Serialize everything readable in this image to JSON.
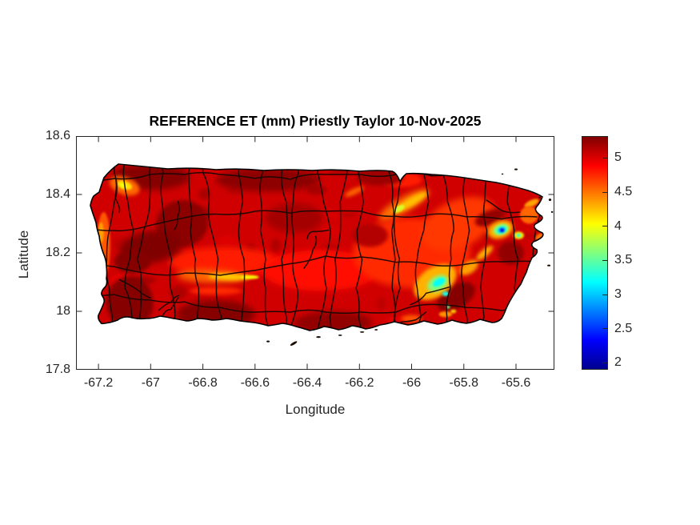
{
  "chart_data": {
    "type": "heatmap",
    "title": "REFERENCE ET (mm) Priestly Taylor 10-Nov-2025",
    "xlabel": "Longitude",
    "ylabel": "Latitude",
    "x_ticks": [
      -67.2,
      -67,
      -66.8,
      -66.6,
      -66.4,
      -66.2,
      -66,
      -65.8,
      -65.6
    ],
    "x_tick_labels": [
      "-67.2",
      "-67",
      "-66.8",
      "-66.6",
      "-66.4",
      "-66.2",
      "-66",
      "-65.8",
      "-65.6"
    ],
    "y_ticks": [
      18.6,
      18.4,
      18.2,
      18,
      17.8
    ],
    "y_tick_labels": [
      "18.6",
      "18.4",
      "18.2",
      "18",
      "17.8"
    ],
    "xlim": [
      -67.286,
      -65.453
    ],
    "ylim": [
      17.8,
      18.6
    ],
    "grid": false,
    "region": "Puerto Rico with municipal boundary outlines over a reference-ET raster",
    "axis_color": "#262626",
    "boundary_color": "#140703",
    "coast_color": "#000000",
    "colorbar": {
      "position": "right",
      "ticks": [
        5,
        4.5,
        4,
        3.5,
        3,
        2.5,
        2
      ],
      "tick_labels": [
        "5",
        "4.5",
        "4",
        "3.5",
        "3",
        "2.5",
        "2"
      ],
      "vmin": 1.9,
      "vmax": 5.32,
      "colormap": "jet",
      "stops": [
        {
          "at": 0.0,
          "color": "#00008f"
        },
        {
          "at": 0.125,
          "color": "#0000ff"
        },
        {
          "at": 0.375,
          "color": "#00ffff"
        },
        {
          "at": 0.625,
          "color": "#ffff00"
        },
        {
          "at": 0.875,
          "color": "#ff0000"
        },
        {
          "at": 1.0,
          "color": "#800000"
        }
      ]
    },
    "base_value_mm": 5.05,
    "features": [
      {
        "name": "central-band-west-wash",
        "lon": -66.72,
        "lat": 18.17,
        "w": 0.42,
        "h": 0.1,
        "rot": 0,
        "v": 4.8
      },
      {
        "name": "central-band-mid-wash",
        "lon": -66.35,
        "lat": 18.14,
        "w": 0.45,
        "h": 0.14,
        "rot": 0,
        "v": 4.85
      },
      {
        "name": "east-half-wash",
        "lon": -66.0,
        "lat": 18.2,
        "w": 0.45,
        "h": 0.24,
        "rot": 0,
        "v": 4.75
      },
      {
        "name": "northeast-wash",
        "lon": -65.82,
        "lat": 18.3,
        "w": 0.3,
        "h": 0.16,
        "rot": -25,
        "v": 4.7
      },
      {
        "name": "north-coast-sanjuan-wash",
        "lon": -66.04,
        "lat": 18.45,
        "w": 0.16,
        "h": 0.05,
        "rot": 0,
        "v": 4.8
      },
      {
        "name": "north-coast-dark-west",
        "lon": -67.0,
        "lat": 18.46,
        "w": 0.3,
        "h": 0.09,
        "rot": 0,
        "v": 5.3
      },
      {
        "name": "north-coast-dark-mid",
        "lon": -66.55,
        "lat": 18.45,
        "w": 0.4,
        "h": 0.08,
        "rot": 0,
        "v": 5.28
      },
      {
        "name": "north-coast-dark-east",
        "lon": -66.12,
        "lat": 18.46,
        "w": 0.18,
        "h": 0.06,
        "rot": 0,
        "v": 5.22
      },
      {
        "name": "nw-inland-dark",
        "lon": -66.88,
        "lat": 18.3,
        "w": 0.2,
        "h": 0.16,
        "rot": -10,
        "v": 5.28
      },
      {
        "name": "west-central-dark",
        "lon": -67.0,
        "lat": 18.22,
        "w": 0.24,
        "h": 0.11,
        "rot": -10,
        "v": 5.32
      },
      {
        "name": "west-dark-2",
        "lon": -67.07,
        "lat": 18.17,
        "w": 0.14,
        "h": 0.08,
        "rot": 0,
        "v": 5.3
      },
      {
        "name": "southwest-dark",
        "lon": -67.08,
        "lat": 18.03,
        "w": 0.18,
        "h": 0.18,
        "rot": 0,
        "v": 5.3
      },
      {
        "name": "south-band-west-dark",
        "lon": -66.75,
        "lat": 17.99,
        "w": 0.3,
        "h": 0.1,
        "rot": 0,
        "v": 5.3
      },
      {
        "name": "south-band-central-dark",
        "lon": -66.3,
        "lat": 17.96,
        "w": 0.3,
        "h": 0.08,
        "rot": 0,
        "v": 5.26
      },
      {
        "name": "central-dark-1",
        "lon": -66.45,
        "lat": 18.32,
        "w": 0.22,
        "h": 0.1,
        "rot": 0,
        "v": 5.2
      },
      {
        "name": "central-dark-2",
        "lon": -66.16,
        "lat": 18.26,
        "w": 0.14,
        "h": 0.08,
        "rot": 0,
        "v": 5.15
      },
      {
        "name": "southeast-dark",
        "lon": -65.83,
        "lat": 18.05,
        "w": 0.16,
        "h": 0.08,
        "rot": -30,
        "v": 5.3
      },
      {
        "name": "east-coast-dark",
        "lon": -65.62,
        "lat": 18.2,
        "w": 0.1,
        "h": 0.08,
        "rot": 0,
        "v": 5.26
      },
      {
        "name": "ne-dark-strip",
        "lon": -65.7,
        "lat": 18.32,
        "w": 0.12,
        "h": 0.05,
        "rot": -20,
        "v": 5.25
      },
      {
        "name": "west-coast-orange",
        "lon": -67.18,
        "lat": 18.23,
        "w": 0.05,
        "h": 0.22,
        "rot": 0,
        "v": 4.6
      },
      {
        "name": "west-coast-yellow",
        "lon": -67.19,
        "lat": 18.27,
        "w": 0.02,
        "h": 0.07,
        "rot": 0,
        "v": 4.35
      },
      {
        "name": "nw-ridge-halo",
        "lon": -67.1,
        "lat": 18.43,
        "w": 0.12,
        "h": 0.06,
        "rot": 20,
        "v": 4.55
      },
      {
        "name": "nw-ridge-yellow",
        "lon": -67.1,
        "lat": 18.432,
        "w": 0.06,
        "h": 0.028,
        "rot": 20,
        "v": 4.15
      },
      {
        "name": "nw-ridge-core",
        "lon": -67.105,
        "lat": 18.43,
        "w": 0.028,
        "h": 0.014,
        "rot": 20,
        "v": 4.0
      },
      {
        "name": "cordillera-halo",
        "lon": -66.77,
        "lat": 18.12,
        "w": 0.26,
        "h": 0.045,
        "rot": 2,
        "v": 4.55
      },
      {
        "name": "cordillera-yellow",
        "lon": -66.7,
        "lat": 18.118,
        "w": 0.16,
        "h": 0.022,
        "rot": 2,
        "v": 4.2
      },
      {
        "name": "cordillera-core",
        "lon": -66.62,
        "lat": 18.117,
        "w": 0.07,
        "h": 0.013,
        "rot": 0,
        "v": 4.02
      },
      {
        "name": "cordillera-south-faint",
        "lon": -66.75,
        "lat": 18.07,
        "w": 0.2,
        "h": 0.025,
        "rot": 0,
        "v": 4.75
      },
      {
        "name": "sanjuan-diagonal-halo",
        "lon": -66.03,
        "lat": 18.365,
        "w": 0.22,
        "h": 0.05,
        "rot": -30,
        "v": 4.5
      },
      {
        "name": "sanjuan-diagonal-yellow",
        "lon": -66.0,
        "lat": 18.375,
        "w": 0.14,
        "h": 0.028,
        "rot": -30,
        "v": 4.25
      },
      {
        "name": "sanjuan-diagonal-green",
        "lon": -66.05,
        "lat": 18.35,
        "w": 0.05,
        "h": 0.02,
        "rot": -30,
        "v": 3.9
      },
      {
        "name": "faint-streak-naranjito",
        "lon": -66.22,
        "lat": 18.41,
        "w": 0.08,
        "h": 0.02,
        "rot": -25,
        "v": 4.55
      },
      {
        "name": "carite-halo",
        "lon": -65.91,
        "lat": 18.1,
        "w": 0.18,
        "h": 0.1,
        "rot": -35,
        "v": 4.3
      },
      {
        "name": "carite-ne-extension",
        "lon": -65.78,
        "lat": 18.15,
        "w": 0.08,
        "h": 0.04,
        "rot": -35,
        "v": 4.35
      },
      {
        "name": "carite-green",
        "lon": -65.9,
        "lat": 18.095,
        "w": 0.085,
        "h": 0.05,
        "rot": -30,
        "v": 3.6
      },
      {
        "name": "carite-cyan",
        "lon": -65.895,
        "lat": 18.1,
        "w": 0.05,
        "h": 0.024,
        "rot": -30,
        "v": 3.2
      },
      {
        "name": "carite-cyan-2",
        "lon": -65.87,
        "lat": 18.06,
        "w": 0.026,
        "h": 0.016,
        "rot": 0,
        "v": 3.25
      },
      {
        "name": "carite-green-dot-south",
        "lon": -65.86,
        "lat": 18.015,
        "w": 0.014,
        "h": 0.012,
        "rot": 0,
        "v": 3.55
      },
      {
        "name": "yunque-sw-streak",
        "lon": -65.72,
        "lat": 18.2,
        "w": 0.08,
        "h": 0.024,
        "rot": -40,
        "v": 4.3
      },
      {
        "name": "el-yunque-halo",
        "lon": -65.66,
        "lat": 18.28,
        "w": 0.1,
        "h": 0.06,
        "rot": -20,
        "v": 4.3
      },
      {
        "name": "el-yunque-green",
        "lon": -65.657,
        "lat": 18.28,
        "w": 0.06,
        "h": 0.036,
        "rot": -20,
        "v": 3.6
      },
      {
        "name": "el-yunque-cyan",
        "lon": -65.655,
        "lat": 18.279,
        "w": 0.036,
        "h": 0.022,
        "rot": -20,
        "v": 3.1
      },
      {
        "name": "el-yunque-blue",
        "lon": -65.654,
        "lat": 18.278,
        "w": 0.018,
        "h": 0.013,
        "rot": 0,
        "v": 2.4
      },
      {
        "name": "el-yunque-core",
        "lon": -65.653,
        "lat": 18.277,
        "w": 0.009,
        "h": 0.007,
        "rot": 0,
        "v": 2.0
      },
      {
        "name": "yunque-east-yellow-ring",
        "lon": -65.59,
        "lat": 18.26,
        "w": 0.04,
        "h": 0.026,
        "rot": 0,
        "v": 4.1
      },
      {
        "name": "yunque-east-cyan",
        "lon": -65.59,
        "lat": 18.26,
        "w": 0.018,
        "h": 0.012,
        "rot": 0,
        "v": 3.3
      },
      {
        "name": "fajardo-yellow",
        "lon": -65.54,
        "lat": 18.37,
        "w": 0.06,
        "h": 0.022,
        "rot": -25,
        "v": 4.35
      },
      {
        "name": "fajardo-orange",
        "lon": -65.55,
        "lat": 18.33,
        "w": 0.07,
        "h": 0.06,
        "rot": 0,
        "v": 4.55
      },
      {
        "name": "east-tip-orange",
        "lon": -65.5,
        "lat": 18.25,
        "w": 0.05,
        "h": 0.035,
        "rot": 0,
        "v": 4.5
      },
      {
        "name": "south-coast-orange-1",
        "lon": -66.0,
        "lat": 17.975,
        "w": 0.08,
        "h": 0.025,
        "rot": 0,
        "v": 4.6
      },
      {
        "name": "south-coast-orange-2",
        "lon": -65.87,
        "lat": 17.99,
        "w": 0.05,
        "h": 0.02,
        "rot": 0,
        "v": 4.4
      },
      {
        "name": "south-coast-yellow-dot",
        "lon": -65.84,
        "lat": 18.0,
        "w": 0.022,
        "h": 0.013,
        "rot": 0,
        "v": 4.2
      }
    ],
    "offshore_cays": [
      {
        "lon": -66.55,
        "lat": 17.897,
        "w": 0.012,
        "h": 0.006,
        "rot": 0
      },
      {
        "lon": -66.452,
        "lat": 17.89,
        "w": 0.03,
        "h": 0.008,
        "rot": -30
      },
      {
        "lon": -66.357,
        "lat": 17.912,
        "w": 0.018,
        "h": 0.006,
        "rot": 0
      },
      {
        "lon": -66.274,
        "lat": 17.918,
        "w": 0.014,
        "h": 0.005,
        "rot": 0
      },
      {
        "lon": -66.19,
        "lat": 17.929,
        "w": 0.016,
        "h": 0.005,
        "rot": 0
      },
      {
        "lon": -66.136,
        "lat": 17.937,
        "w": 0.012,
        "h": 0.005,
        "rot": 0
      },
      {
        "lon": -65.47,
        "lat": 18.382,
        "w": 0.01,
        "h": 0.008,
        "rot": 0
      },
      {
        "lon": -65.462,
        "lat": 18.34,
        "w": 0.008,
        "h": 0.006,
        "rot": 0
      },
      {
        "lon": -65.474,
        "lat": 18.157,
        "w": 0.012,
        "h": 0.006,
        "rot": 0
      },
      {
        "lon": -65.51,
        "lat": 18.39,
        "w": 0.008,
        "h": 0.005,
        "rot": 0
      },
      {
        "lon": -65.6,
        "lat": 18.486,
        "w": 0.012,
        "h": 0.006,
        "rot": 0
      },
      {
        "lon": -65.652,
        "lat": 18.47,
        "w": 0.008,
        "h": 0.004,
        "rot": 0
      }
    ]
  }
}
